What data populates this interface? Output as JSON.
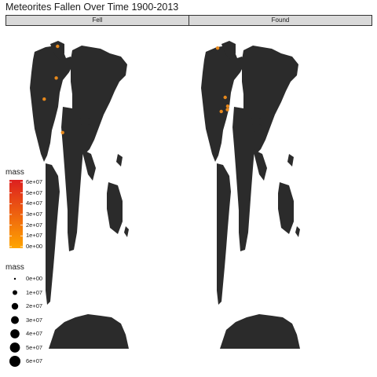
{
  "chart_data": {
    "type": "scatter",
    "title": "Meteorites Fallen Over Time 1900-2013",
    "facets": [
      "Fell",
      "Found"
    ],
    "point_color": "#E8891C",
    "series": [
      {
        "name": "Fell",
        "points": [
          {
            "lon": -123,
            "lat": 45
          },
          {
            "lon": -80,
            "lat": 57
          },
          {
            "lon": -75,
            "lat": 75
          },
          {
            "lon": -57,
            "lat": 26
          }
        ]
      },
      {
        "name": "Found",
        "points": [
          {
            "lon": -115,
            "lat": 74
          },
          {
            "lon": -88,
            "lat": 46
          },
          {
            "lon": -102,
            "lat": 38
          },
          {
            "lon": -80,
            "lat": 39
          },
          {
            "lon": -79,
            "lat": 41
          }
        ]
      }
    ],
    "color_legend": {
      "title": "mass",
      "labels": [
        "6e+07",
        "5e+07",
        "4e+07",
        "3e+07",
        "2e+07",
        "1e+07",
        "0e+00"
      ],
      "low_color": "#FFA500",
      "high_color": "#DD1F1F"
    },
    "size_legend": {
      "title": "mass",
      "labels": [
        "0e+00",
        "1e+07",
        "2e+07",
        "3e+07",
        "4e+07",
        "5e+07",
        "6e+07"
      ]
    },
    "land_color": "#2b2b2b"
  }
}
